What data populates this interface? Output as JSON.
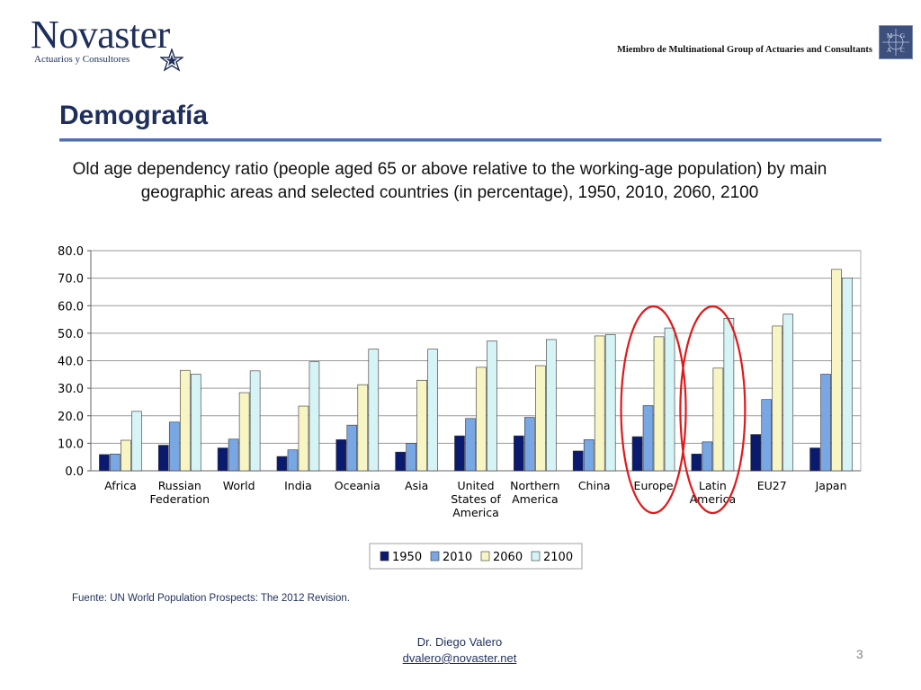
{
  "header": {
    "logo_name": "Novaster",
    "logo_tagline": "Actuarios y Consultores",
    "member_text": "Miembro de Multinational Group of Actuaries and Consultants",
    "badge_letters": [
      "M",
      "G",
      "A",
      "C"
    ]
  },
  "slide": {
    "title": "Demografía",
    "subtitle": "Old age dependency ratio (people aged 65 or above relative to the working-age population) by main geographic areas and selected countries (in percentage), 1950, 2010, 2060, 2100",
    "source": "Fuente: UN World Population Prospects: The 2012 Revision.",
    "author": "Dr. Diego Valero",
    "email": "dvalero@novaster.net",
    "page_number": "3"
  },
  "colors": {
    "s1950": "#0a1a6e",
    "s2010": "#79a7e3",
    "s2060": "#f7f5c3",
    "s2100": "#d6f3f6",
    "highlight": "#e0191b",
    "brand": "#1f2f5c"
  },
  "chart_data": {
    "type": "bar",
    "categories": [
      [
        "Africa"
      ],
      [
        "Russian",
        "Federation"
      ],
      [
        "World"
      ],
      [
        "India"
      ],
      [
        "Oceania"
      ],
      [
        "Asia"
      ],
      [
        "United",
        "States of",
        "America"
      ],
      [
        "Northern",
        "America"
      ],
      [
        "China"
      ],
      [
        "Europe"
      ],
      [
        "Latin",
        "America"
      ],
      [
        "EU27"
      ],
      [
        "Japan"
      ]
    ],
    "series": [
      {
        "name": "1950",
        "values": [
          5.9,
          9.3,
          8.3,
          5.2,
          11.3,
          6.8,
          12.7,
          12.7,
          7.2,
          12.4,
          6.1,
          13.2,
          8.3
        ]
      },
      {
        "name": "2010",
        "values": [
          6.1,
          17.7,
          11.5,
          7.6,
          16.6,
          10.0,
          19.0,
          19.4,
          11.3,
          23.7,
          10.5,
          25.9,
          35.1
        ]
      },
      {
        "name": "2060",
        "values": [
          11.1,
          36.5,
          28.4,
          23.5,
          31.3,
          32.9,
          37.6,
          38.2,
          49.0,
          48.7,
          37.3,
          52.6,
          73.2
        ]
      },
      {
        "name": "2100",
        "values": [
          21.6,
          35.1,
          36.3,
          39.6,
          44.2,
          44.2,
          47.2,
          47.7,
          49.5,
          51.9,
          55.4,
          56.9,
          70.1
        ]
      }
    ],
    "y_ticks": [
      "0.0",
      "10.0",
      "20.0",
      "30.0",
      "40.0",
      "50.0",
      "60.0",
      "70.0",
      "80.0"
    ],
    "ylim": [
      0,
      80
    ],
    "grid": true,
    "legend": "bottom-center",
    "highlighted_categories": [
      "Europe",
      "Latin America"
    ]
  }
}
